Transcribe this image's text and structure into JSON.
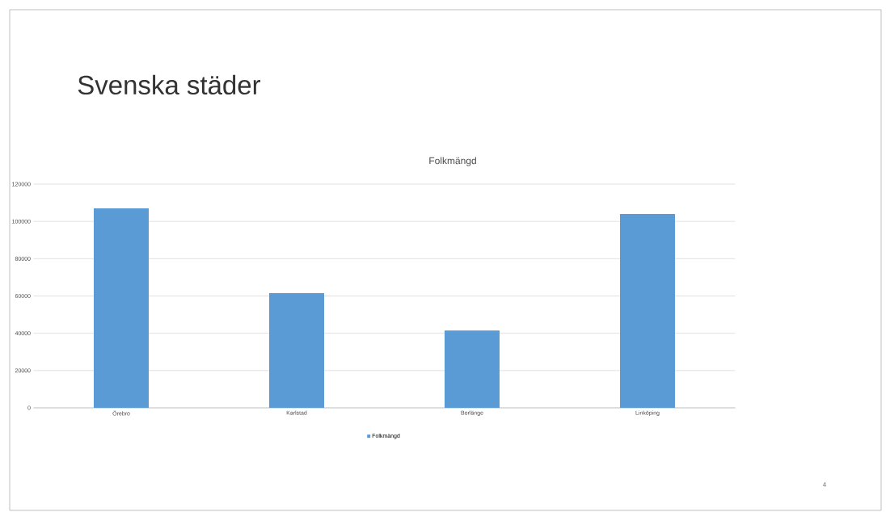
{
  "chart_data": {
    "type": "bar",
    "title": "Svenska städer",
    "subtitle": "Folkmängd",
    "categories": [
      "Örebro",
      "Karlstad",
      "Borlänge",
      "Linköping"
    ],
    "series": [
      {
        "name": "Folkmängd",
        "color": "#5b9bd5",
        "values": [
          107000,
          61500,
          41500,
          104000
        ]
      }
    ],
    "ylim": [
      0,
      120000
    ],
    "yticks": [
      0,
      20000,
      40000,
      60000,
      80000,
      100000,
      120000
    ],
    "grid": "y",
    "legend": "bottom",
    "annotations": [
      "4"
    ]
  }
}
